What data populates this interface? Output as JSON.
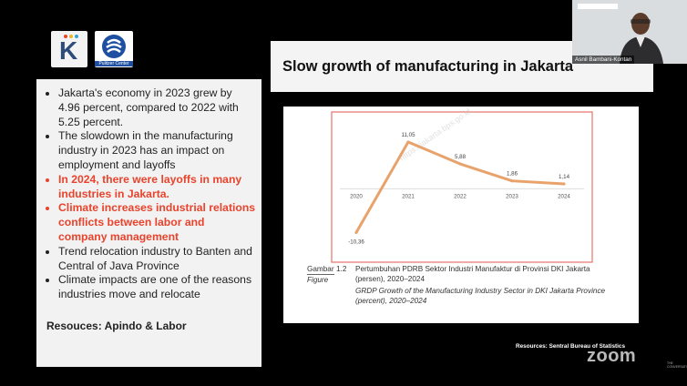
{
  "logos": {
    "k_letter": "K",
    "pulitzer_label": "Pulitzer Center"
  },
  "slide": {
    "title": "Slow growth of manufacturing in Jakarta",
    "bullets": [
      {
        "text": "Jakarta's economy in 2023 grew by 4.96 percent, compared to 2022 with 5.25 percent.",
        "highlight": false
      },
      {
        "text": "The slowdown in the manufacturing industry in 2023 has an impact on employment and layoffs",
        "highlight": false
      },
      {
        "text": "In 2024, there were layoffs in many industries in Jakarta.",
        "highlight": true
      },
      {
        "text": "Climate increases industrial relations conflicts between labor and company management",
        "highlight": true
      },
      {
        "text": "Trend relocation industry to Banten and Central of Java Province",
        "highlight": false
      },
      {
        "text": "Climate impacts are one of the reasons industries move and relocate",
        "highlight": false
      }
    ],
    "resources": "Resouces: Apindo & Labor",
    "source_note": "Resources: Sentral Bureau of Statistics"
  },
  "figure": {
    "label_gambar": "Gambar",
    "label_figure": "Figure",
    "number": "1.2",
    "caption_id": "Pertumbuhan PDRB Sektor Industri Manufaktur di Provinsi DKI Jakarta (persen), 2020–2024",
    "caption_en": "GRDP Growth of the Manufacturing Industry Sector in DKI Jakarta Province (percent), 2020–2024",
    "watermark": "https://jakarta.bps.go.id"
  },
  "chart_data": {
    "type": "line",
    "x": [
      "2020",
      "2021",
      "2022",
      "2023",
      "2024"
    ],
    "values": [
      -10.36,
      11.05,
      5.88,
      1.86,
      1.14
    ],
    "value_labels": [
      "-10,36",
      "11,05",
      "5,88",
      "1,86",
      "1,14"
    ],
    "ylim": [
      -12,
      13
    ],
    "line_color": "#e8a26b",
    "frame_color": "#e57368"
  },
  "zoom": {
    "logo": "zoom",
    "small_text": "THE CONVERSATION"
  },
  "video": {
    "participant_name": "Asnil Bambani-Kontan"
  }
}
